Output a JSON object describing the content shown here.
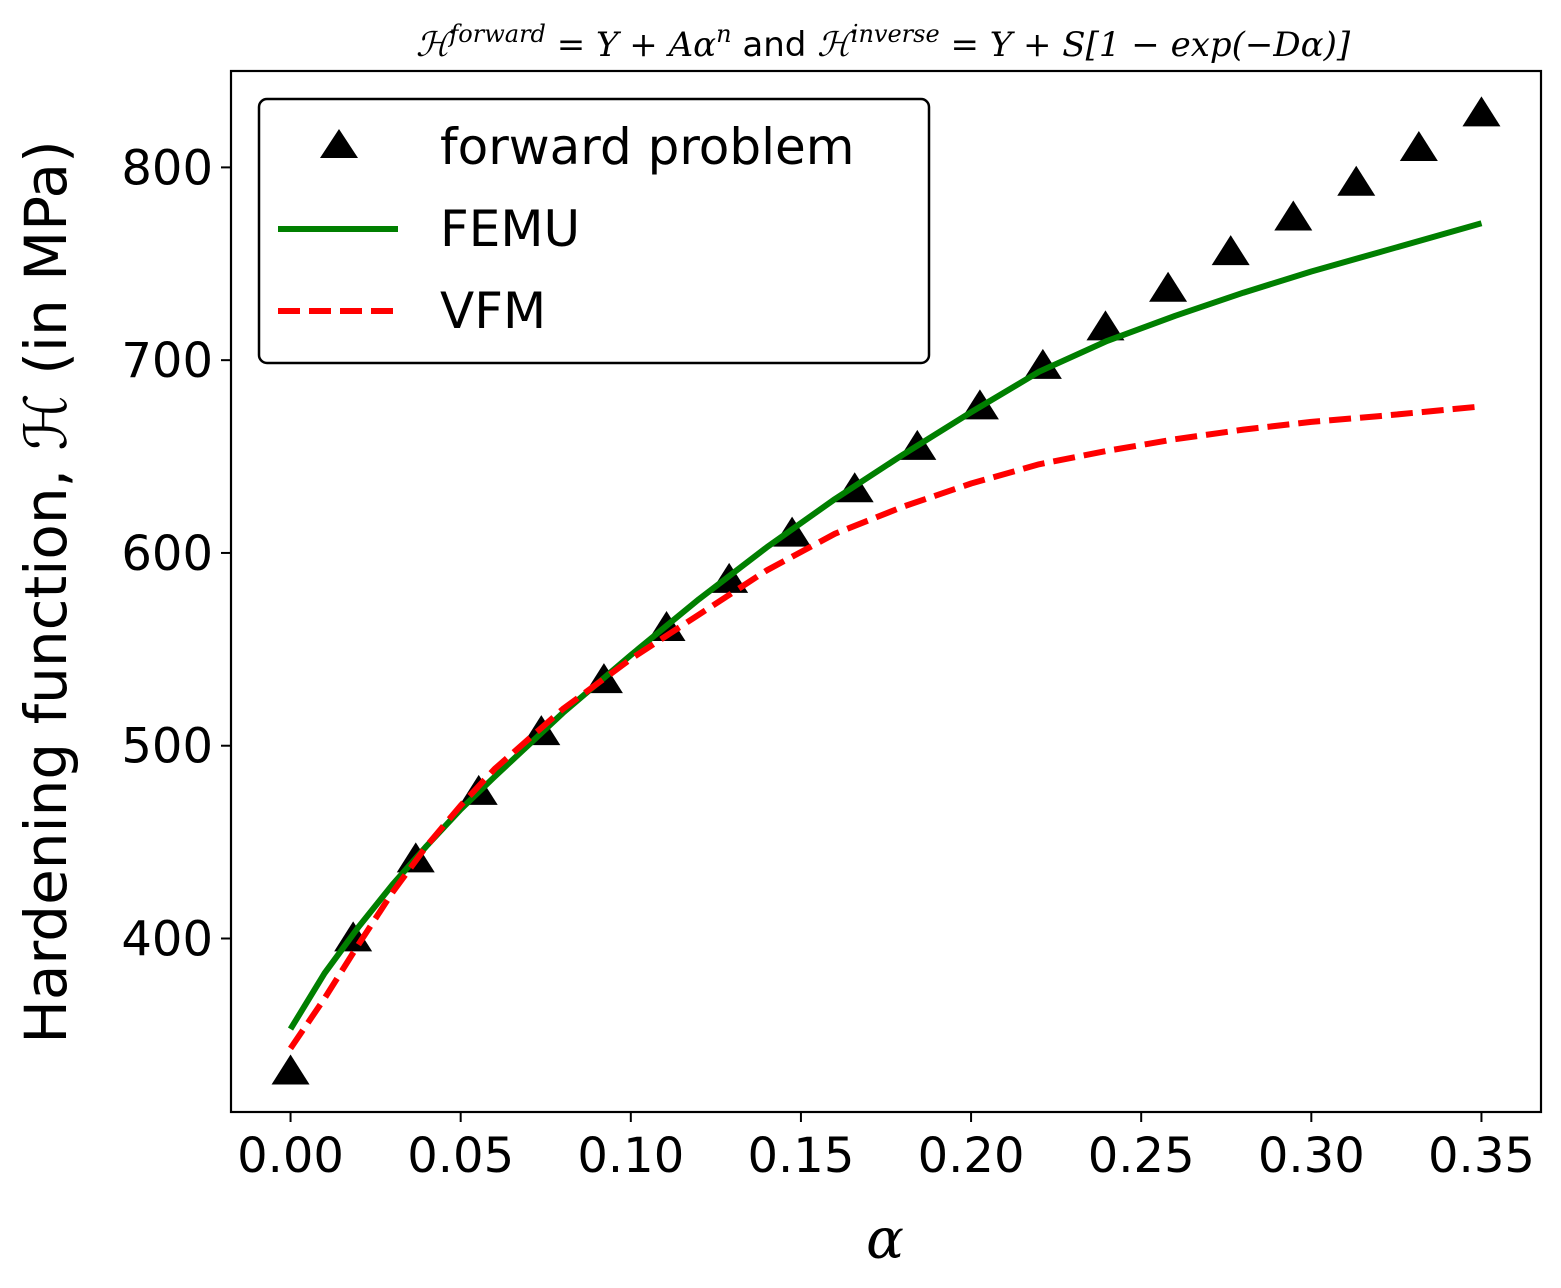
{
  "chart_data": {
    "type": "line",
    "title_parts": {
      "h1": "ℋ",
      "sup1": "forward",
      "eq1": " = Y + Aα",
      "sup2": "n",
      "mid": " and ",
      "h2": "ℋ",
      "sup3": "inverse",
      "eq2": " = Y + S[1 − exp(−Dα)]"
    },
    "xlabel": "α",
    "ylabel": "Hardening function, ℋ (in MPa)",
    "xlim": [
      -0.0175,
      0.3675
    ],
    "ylim": [
      310,
      850
    ],
    "xticks": [
      0.0,
      0.05,
      0.1,
      0.15,
      0.2,
      0.25,
      0.3,
      0.35
    ],
    "xtick_labels": [
      "0.00",
      "0.05",
      "0.10",
      "0.15",
      "0.20",
      "0.25",
      "0.30",
      "0.35"
    ],
    "yticks": [
      400,
      500,
      600,
      700,
      800
    ],
    "ytick_labels": [
      "400",
      "500",
      "600",
      "700",
      "800"
    ],
    "grid": false,
    "legend_position": "top-left",
    "series": [
      {
        "name": "forward problem",
        "style": "markers",
        "marker": "triangle-up",
        "color": "#000000",
        "x": [
          0.0,
          0.0184,
          0.0368,
          0.0553,
          0.0737,
          0.0921,
          0.1105,
          0.1289,
          0.1474,
          0.1658,
          0.1842,
          0.2026,
          0.2211,
          0.2395,
          0.2579,
          0.2763,
          0.2947,
          0.3132,
          0.3316,
          0.35
        ],
        "y": [
          330,
          399,
          440,
          475,
          506,
          533,
          560,
          585,
          609,
          632,
          654,
          675,
          696,
          716,
          736,
          755,
          773,
          791,
          809,
          827
        ]
      },
      {
        "name": "FEMU",
        "style": "solid",
        "color": "#007f00",
        "x": [
          0.0,
          0.01,
          0.02,
          0.03,
          0.04,
          0.05,
          0.06,
          0.08,
          0.1,
          0.12,
          0.14,
          0.16,
          0.18,
          0.2,
          0.22,
          0.24,
          0.26,
          0.28,
          0.3,
          0.32,
          0.35
        ],
        "y": [
          353,
          382,
          406,
          428,
          448,
          467,
          484,
          517,
          547,
          576,
          603,
          628,
          651,
          673,
          694,
          710,
          723,
          735,
          746,
          756,
          771
        ]
      },
      {
        "name": "VFM",
        "style": "dashed",
        "color": "#ff0000",
        "x": [
          0.0,
          0.01,
          0.02,
          0.03,
          0.04,
          0.05,
          0.06,
          0.08,
          0.1,
          0.12,
          0.14,
          0.16,
          0.18,
          0.2,
          0.22,
          0.24,
          0.26,
          0.28,
          0.3,
          0.32,
          0.35
        ],
        "y": [
          343,
          369,
          397,
          424,
          448,
          469,
          488,
          519,
          545,
          568,
          591,
          610,
          624,
          636,
          646,
          653,
          659,
          664,
          668,
          671,
          676
        ]
      }
    ]
  }
}
